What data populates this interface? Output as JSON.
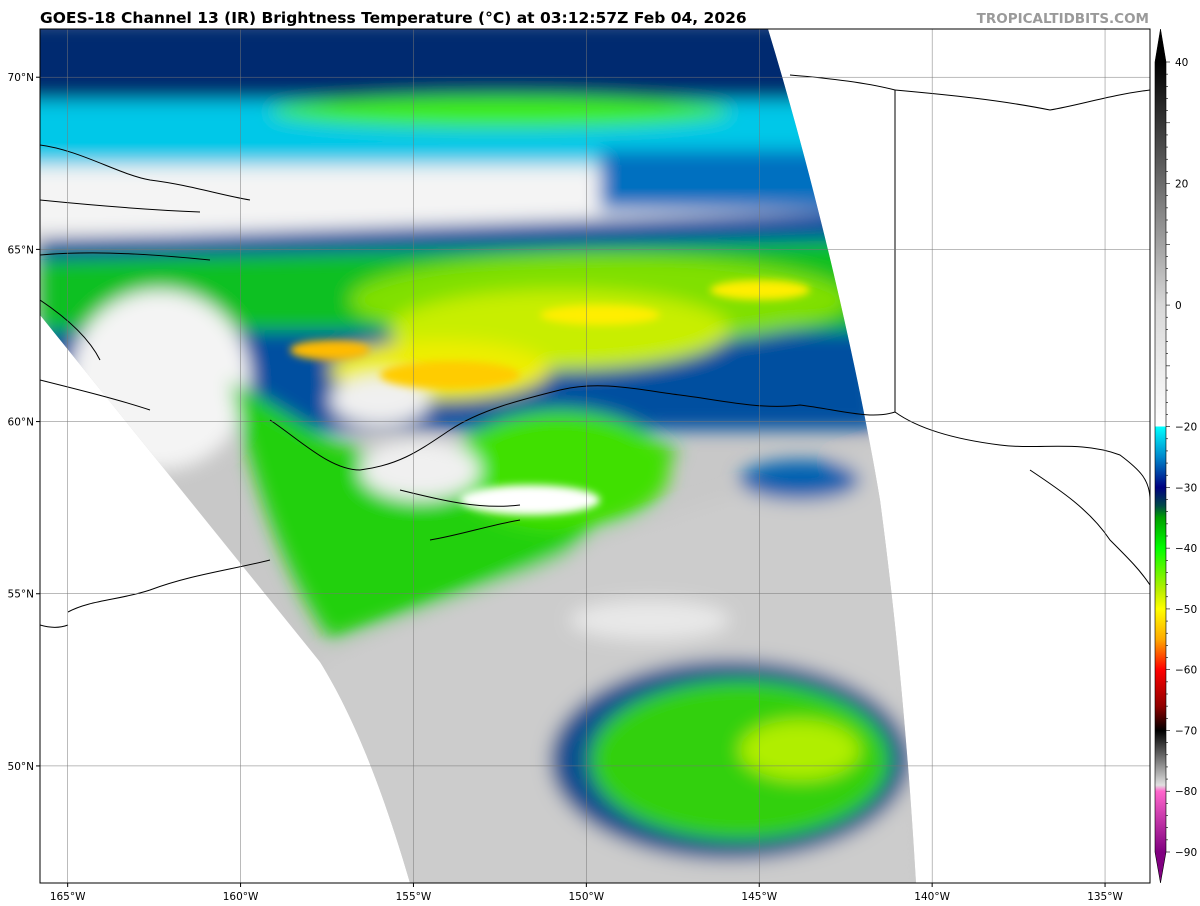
{
  "title": "GOES-18 Channel 13 (IR) Brightness Temperature (°C) at 03:12:57Z Feb 04, 2026",
  "watermark": "TROPICALTIDBITS.COM",
  "map": {
    "lon_range": [
      -165.8,
      -133.7
    ],
    "lat_range": [
      46.6,
      71.4
    ],
    "lon_ticks": [
      {
        "value": -165,
        "label": "165°W"
      },
      {
        "value": -160,
        "label": "160°W"
      },
      {
        "value": -155,
        "label": "155°W"
      },
      {
        "value": -150,
        "label": "150°W"
      },
      {
        "value": -145,
        "label": "145°W"
      },
      {
        "value": -140,
        "label": "140°W"
      },
      {
        "value": -135,
        "label": "135°W"
      }
    ],
    "lat_ticks": [
      {
        "value": 70,
        "label": "70°N"
      },
      {
        "value": 65,
        "label": "65°N"
      },
      {
        "value": 60,
        "label": "60°N"
      },
      {
        "value": 55,
        "label": "55°N"
      },
      {
        "value": 50,
        "label": "50°N"
      }
    ],
    "grid": true
  },
  "colorbar": {
    "range": [
      -90,
      40
    ],
    "ticks": [
      40,
      20,
      0,
      -20,
      -30,
      -40,
      -50,
      -60,
      -70,
      -80,
      -90
    ],
    "stops": [
      {
        "value": 40,
        "color": "#000000"
      },
      {
        "value": 0,
        "color": "#d8d8d8"
      },
      {
        "value": -20,
        "color": "#ffffff"
      },
      {
        "value": -20,
        "color": "#00ffff"
      },
      {
        "value": -25,
        "color": "#0088cc"
      },
      {
        "value": -30,
        "color": "#000080"
      },
      {
        "value": -33,
        "color": "#004848"
      },
      {
        "value": -35,
        "color": "#00a000"
      },
      {
        "value": -40,
        "color": "#00ff00"
      },
      {
        "value": -47,
        "color": "#bbee00"
      },
      {
        "value": -50,
        "color": "#ffff00"
      },
      {
        "value": -55,
        "color": "#ffaa00"
      },
      {
        "value": -60,
        "color": "#ff0000"
      },
      {
        "value": -66,
        "color": "#900000"
      },
      {
        "value": -70,
        "color": "#000000"
      },
      {
        "value": -79,
        "color": "#e0e0e0"
      },
      {
        "value": -80,
        "color": "#ff66cc"
      },
      {
        "value": -90,
        "color": "#800080"
      }
    ]
  }
}
